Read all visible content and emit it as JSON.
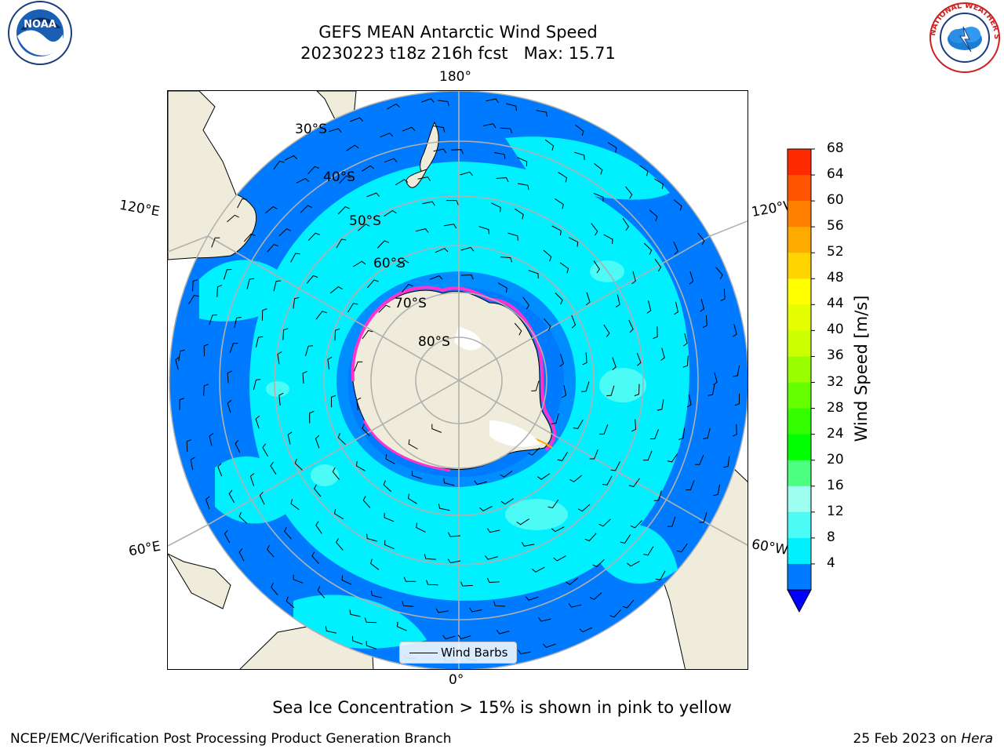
{
  "title_line1": "GEFS MEAN Antarctic Wind Speed",
  "title_line2": "20230223 t18z 216h fcst   Max: 15.71",
  "lon_labels": {
    "top": "180°",
    "bottom": "0°",
    "upper_left": "120°E",
    "upper_right": "120°W",
    "lower_left": "60°E",
    "lower_right": "60°W"
  },
  "lat_labels": [
    "30°S",
    "40°S",
    "50°S",
    "60°S",
    "70°S",
    "80°S"
  ],
  "legend_label": "Wind Barbs",
  "colorbar": {
    "title": "Wind Speed [m/s]",
    "ticks": [
      "68",
      "64",
      "60",
      "56",
      "52",
      "48",
      "44",
      "40",
      "36",
      "32",
      "28",
      "24",
      "20",
      "16",
      "12",
      "8",
      "4"
    ],
    "colors": [
      "#ff0000",
      "#ff2a00",
      "#ff5500",
      "#ff8000",
      "#ffaa00",
      "#ffd400",
      "#ffff00",
      "#e6ff00",
      "#ccff00",
      "#99ff00",
      "#66ff00",
      "#33ff00",
      "#00ff00",
      "#4dff80",
      "#9dfff0",
      "#4dfbf6",
      "#00f0ff",
      "#007bff"
    ],
    "extend_color": "#0000ff"
  },
  "caption": "Sea Ice Concentration > 15% is shown in pink to yellow",
  "footer_left": "NCEP/EMC/Verification Post Processing Product Generation Branch",
  "footer_date": "25 Feb 2023 on ",
  "footer_machine": "Hera",
  "logos": {
    "left": "NOAA",
    "right": "NATIONAL WEATHER SERVICE"
  },
  "map_colors": {
    "ocean_low": "#007bff",
    "ocean_mid": "#00f0ff",
    "ocean_high": "#4dfbf6",
    "land": "#efecdb",
    "sea_ice_edge": "#ff33cc",
    "grid": "#b0b0b0"
  }
}
